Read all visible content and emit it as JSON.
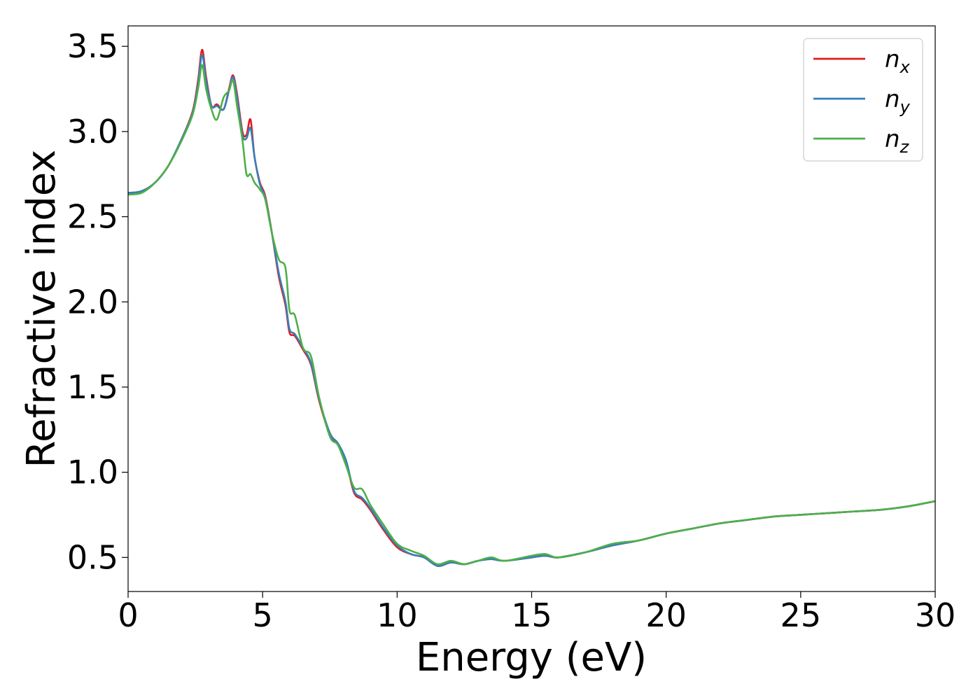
{
  "chart_data": {
    "type": "line",
    "title": "",
    "xlabel": "Energy (eV)",
    "ylabel": "Refractive index",
    "xlim": [
      0,
      30
    ],
    "ylim": [
      0.3,
      3.62
    ],
    "xticks": [
      0,
      5,
      10,
      15,
      20,
      25,
      30
    ],
    "xtick_labels": [
      "0",
      "5",
      "10",
      "15",
      "20",
      "25",
      "30"
    ],
    "yticks": [
      0.5,
      1.0,
      1.5,
      2.0,
      2.5,
      3.0,
      3.5
    ],
    "ytick_labels": [
      "0.5",
      "1.0",
      "1.5",
      "2.0",
      "2.5",
      "3.0",
      "3.5"
    ],
    "grid": false,
    "legend_position": "top-right",
    "series": [
      {
        "name": "n_x",
        "base": "n",
        "sub": "x",
        "color": "#e41a1c",
        "x": [
          0,
          0.5,
          1,
          1.5,
          2,
          2.4,
          2.6,
          2.75,
          2.9,
          3.1,
          3.3,
          3.55,
          3.75,
          3.9,
          4.05,
          4.25,
          4.4,
          4.55,
          4.7,
          4.9,
          5.1,
          5.35,
          5.6,
          5.85,
          6.0,
          6.2,
          6.5,
          6.8,
          7.1,
          7.5,
          7.8,
          8.1,
          8.4,
          8.7,
          9.0,
          9.5,
          10.0,
          10.5,
          11.0,
          11.5,
          12.0,
          12.5,
          13.0,
          13.5,
          14.0,
          15.0,
          15.5,
          16.0,
          17.0,
          18.0,
          19.0,
          20.0,
          21.0,
          22.0,
          23.0,
          24.0,
          25.0,
          26.0,
          27.0,
          28.0,
          29.0,
          30.0
        ],
        "values": [
          2.64,
          2.65,
          2.7,
          2.8,
          2.96,
          3.12,
          3.3,
          3.48,
          3.32,
          3.15,
          3.16,
          3.13,
          3.25,
          3.33,
          3.22,
          3.0,
          2.98,
          3.07,
          2.85,
          2.7,
          2.62,
          2.4,
          2.15,
          1.98,
          1.82,
          1.8,
          1.72,
          1.63,
          1.42,
          1.22,
          1.16,
          1.06,
          0.88,
          0.84,
          0.78,
          0.66,
          0.56,
          0.52,
          0.5,
          0.45,
          0.47,
          0.46,
          0.48,
          0.49,
          0.48,
          0.5,
          0.51,
          0.5,
          0.53,
          0.57,
          0.6,
          0.64,
          0.67,
          0.7,
          0.72,
          0.74,
          0.75,
          0.76,
          0.77,
          0.78,
          0.8,
          0.83
        ]
      },
      {
        "name": "n_y",
        "base": "n",
        "sub": "y",
        "color": "#377eb8",
        "x": [
          0,
          0.5,
          1,
          1.5,
          2,
          2.4,
          2.6,
          2.75,
          2.9,
          3.1,
          3.3,
          3.55,
          3.75,
          3.9,
          4.05,
          4.25,
          4.4,
          4.55,
          4.7,
          4.9,
          5.1,
          5.35,
          5.6,
          5.85,
          6.0,
          6.2,
          6.5,
          6.8,
          7.1,
          7.5,
          7.8,
          8.1,
          8.4,
          8.7,
          9.0,
          9.5,
          10.0,
          10.5,
          11.0,
          11.5,
          12.0,
          12.5,
          13.0,
          13.5,
          14.0,
          15.0,
          15.5,
          16.0,
          17.0,
          18.0,
          19.0,
          20.0,
          21.0,
          22.0,
          23.0,
          24.0,
          25.0,
          26.0,
          27.0,
          28.0,
          29.0,
          30.0
        ],
        "values": [
          2.64,
          2.65,
          2.7,
          2.8,
          2.96,
          3.11,
          3.28,
          3.45,
          3.3,
          3.15,
          3.15,
          3.13,
          3.24,
          3.32,
          3.2,
          2.98,
          2.96,
          3.02,
          2.85,
          2.69,
          2.61,
          2.4,
          2.17,
          2.0,
          1.84,
          1.81,
          1.73,
          1.64,
          1.43,
          1.23,
          1.17,
          1.07,
          0.89,
          0.85,
          0.79,
          0.67,
          0.57,
          0.52,
          0.5,
          0.45,
          0.47,
          0.46,
          0.48,
          0.49,
          0.48,
          0.5,
          0.51,
          0.5,
          0.53,
          0.57,
          0.6,
          0.64,
          0.67,
          0.7,
          0.72,
          0.74,
          0.75,
          0.76,
          0.77,
          0.78,
          0.8,
          0.83
        ]
      },
      {
        "name": "n_z",
        "base": "n",
        "sub": "z",
        "color": "#4daf4a",
        "x": [
          0,
          0.5,
          1,
          1.5,
          2,
          2.4,
          2.6,
          2.75,
          2.9,
          3.1,
          3.3,
          3.55,
          3.75,
          3.9,
          4.05,
          4.25,
          4.4,
          4.55,
          4.7,
          4.9,
          5.1,
          5.35,
          5.6,
          5.85,
          6.0,
          6.2,
          6.5,
          6.8,
          7.1,
          7.5,
          7.8,
          8.1,
          8.4,
          8.7,
          9.0,
          9.5,
          10.0,
          10.5,
          11.0,
          11.5,
          12.0,
          12.5,
          13.0,
          13.5,
          14.0,
          15.0,
          15.5,
          16.0,
          17.0,
          18.0,
          19.0,
          20.0,
          21.0,
          22.0,
          23.0,
          24.0,
          25.0,
          26.0,
          27.0,
          28.0,
          29.0,
          30.0
        ],
        "values": [
          2.63,
          2.64,
          2.7,
          2.8,
          2.95,
          3.1,
          3.25,
          3.39,
          3.25,
          3.13,
          3.07,
          3.2,
          3.24,
          3.3,
          3.15,
          2.95,
          2.75,
          2.75,
          2.7,
          2.66,
          2.6,
          2.4,
          2.25,
          2.2,
          1.95,
          1.92,
          1.73,
          1.68,
          1.44,
          1.21,
          1.16,
          1.04,
          0.91,
          0.9,
          0.81,
          0.69,
          0.58,
          0.54,
          0.51,
          0.46,
          0.48,
          0.46,
          0.48,
          0.5,
          0.48,
          0.51,
          0.52,
          0.5,
          0.53,
          0.58,
          0.6,
          0.64,
          0.67,
          0.7,
          0.72,
          0.74,
          0.75,
          0.76,
          0.77,
          0.78,
          0.8,
          0.83
        ]
      }
    ]
  }
}
